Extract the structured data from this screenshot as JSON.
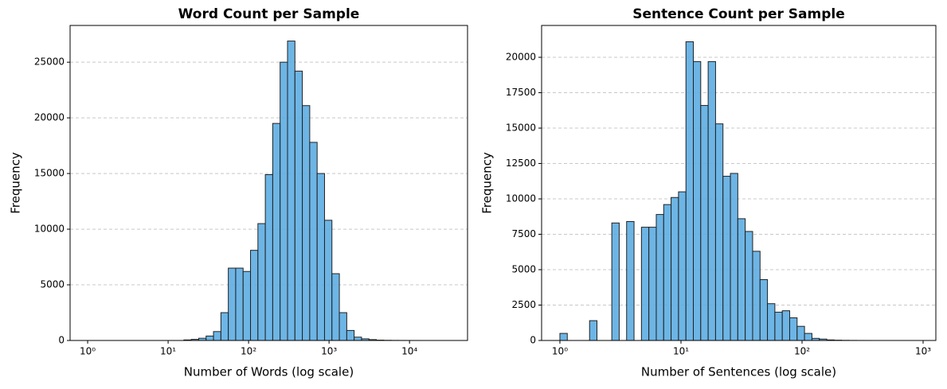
{
  "chart_data": [
    {
      "type": "histogram",
      "title": "Word Count per Sample",
      "xlabel": "Number of Words (log scale)",
      "ylabel": "Frequency",
      "xscale": "log",
      "grid": true,
      "color": "#5dade2",
      "edgecolor": "#222222",
      "xlim": [
        0.605,
        52600
      ],
      "ylim": [
        0,
        28300
      ],
      "xticks": [
        {
          "value": 1,
          "label": "10⁰"
        },
        {
          "value": 10,
          "label": "10¹"
        },
        {
          "value": 100,
          "label": "10²"
        },
        {
          "value": 1000,
          "label": "10³"
        },
        {
          "value": 10000,
          "label": "10⁴"
        }
      ],
      "yticks": [
        0,
        5000,
        10000,
        15000,
        20000,
        25000
      ],
      "bins": [
        1,
        1.236,
        1.528,
        1.888,
        2.333,
        2.884,
        3.565,
        4.406,
        5.445,
        6.73,
        8.318,
        10.28,
        12.71,
        15.7,
        19.41,
        23.99,
        29.65,
        36.64,
        45.29,
        55.98,
        69.18,
        85.51,
        105.7,
        130.6,
        161.4,
        199.5,
        246.6,
        304.8,
        376.7,
        465.6,
        575.4,
        711.2,
        879,
        1086,
        1343,
        1660,
        2051,
        2535,
        3133,
        3873,
        4786,
        5916,
        7311,
        9036,
        11170,
        13800,
        17060,
        21090,
        26060,
        32210,
        39810
      ],
      "values": [
        0,
        0,
        0,
        0,
        0,
        0,
        0,
        0,
        0,
        0,
        0,
        0,
        0,
        50,
        100,
        200,
        400,
        800,
        2500,
        6500,
        6500,
        6200,
        8100,
        10500,
        14900,
        19500,
        25000,
        26900,
        24200,
        21100,
        17800,
        15000,
        10800,
        6000,
        2500,
        900,
        300,
        150,
        80,
        30,
        15,
        8,
        4,
        2,
        1,
        0,
        0,
        0,
        0,
        0
      ]
    },
    {
      "type": "histogram",
      "title": "Sentence Count per Sample",
      "xlabel": "Number of Sentences (log scale)",
      "ylabel": "Frequency",
      "xscale": "log",
      "grid": true,
      "color": "#5dade2",
      "edgecolor": "#222222",
      "xlim": [
        0.706,
        1274
      ],
      "ylim": [
        0,
        22250
      ],
      "xticks": [
        {
          "value": 1,
          "label": "10⁰"
        },
        {
          "value": 10,
          "label": "10¹"
        },
        {
          "value": 100,
          "label": "10²"
        },
        {
          "value": 1000,
          "label": "10³"
        }
      ],
      "yticks": [
        0,
        2500,
        5000,
        7500,
        10000,
        12500,
        15000,
        17500,
        20000
      ],
      "bins": [
        1,
        1.151,
        1.326,
        1.526,
        1.758,
        2.024,
        2.33,
        2.683,
        3.089,
        3.556,
        4.095,
        4.715,
        5.429,
        6.251,
        7.197,
        8.286,
        9.541,
        10.99,
        12.65,
        14.56,
        16.77,
        19.31,
        22.23,
        25.6,
        29.47,
        33.93,
        39.07,
        44.99,
        51.8,
        59.64,
        68.66,
        79.06,
        91.03,
        104.8,
        120.7,
        139,
        160,
        184.2,
        212.1,
        244.2,
        281.2,
        323.7,
        372.8,
        429.2,
        494.1,
        569,
        655.1,
        754.3,
        868.5,
        1000
      ],
      "values": [
        500,
        0,
        0,
        0,
        1400,
        0,
        0,
        8300,
        0,
        8400,
        0,
        8000,
        8000,
        8900,
        9600,
        10100,
        10500,
        21100,
        19700,
        16600,
        19700,
        15300,
        11600,
        11800,
        8600,
        7700,
        6300,
        4300,
        2600,
        2000,
        2100,
        1600,
        1000,
        500,
        150,
        100,
        40,
        20,
        10,
        5,
        2,
        1,
        0,
        0,
        0,
        0,
        0,
        0,
        0
      ]
    }
  ]
}
